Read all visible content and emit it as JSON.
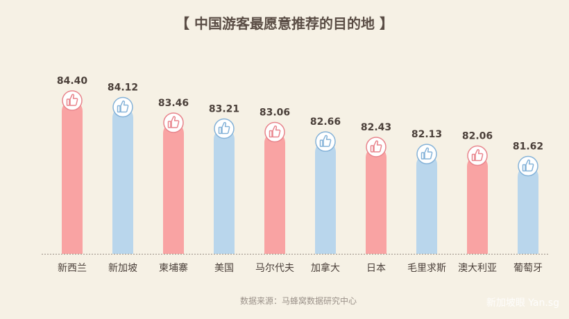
{
  "title": "【 中国游客最愿意推荐的目的地 】",
  "source": "数据来源：马蜂窝数据研究中心",
  "watermark": "新加坡眼 Yan.sg",
  "colors": {
    "pink": "#f9a3a3",
    "blue": "#b9d6ec",
    "pink_icon": "#e8848c",
    "blue_icon": "#84b2d8",
    "text": "#4a3f39",
    "baseline": "#9a8f86"
  },
  "chart_data": {
    "type": "bar",
    "categories": [
      "新西兰",
      "新加坡",
      "柬埔寨",
      "美国",
      "马尔代夫",
      "加拿大",
      "日本",
      "毛里求斯",
      "澳大利亚",
      "葡萄牙"
    ],
    "values": [
      84.4,
      84.12,
      83.46,
      83.21,
      83.06,
      82.66,
      82.43,
      82.13,
      82.06,
      81.62
    ],
    "value_labels": [
      "84.40",
      "84.12",
      "83.46",
      "83.21",
      "83.06",
      "82.66",
      "82.43",
      "82.13",
      "82.06",
      "81.62"
    ],
    "bar_colors": [
      "pink",
      "blue",
      "pink",
      "blue",
      "pink",
      "blue",
      "pink",
      "blue",
      "pink",
      "blue"
    ],
    "icon": "thumbs-up-icon",
    "ylim": [
      77.9,
      84.4
    ],
    "grid": false,
    "legend": "none"
  }
}
